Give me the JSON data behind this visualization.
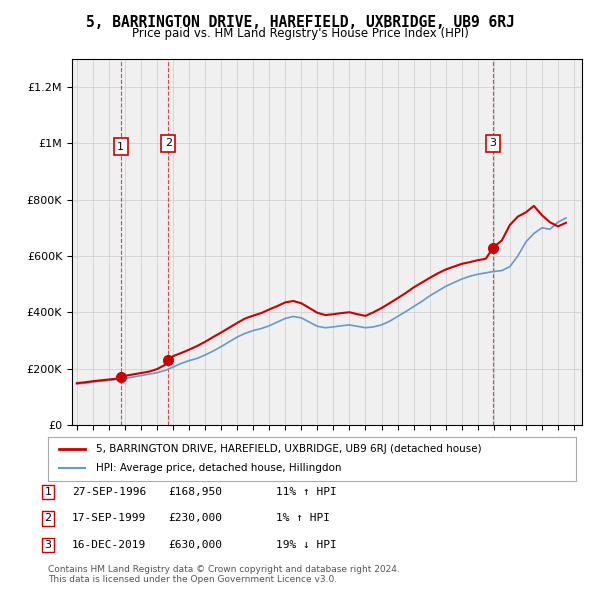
{
  "title": "5, BARRINGTON DRIVE, HAREFIELD, UXBRIDGE, UB9 6RJ",
  "subtitle": "Price paid vs. HM Land Registry's House Price Index (HPI)",
  "title_fontsize": 11,
  "subtitle_fontsize": 9.5,
  "background_color": "#ffffff",
  "plot_bg_color": "#f0f0f0",
  "hatch_color": "#cccccc",
  "ylim": [
    0,
    1300000
  ],
  "xlim_start": 1994.0,
  "xlim_end": 2025.5,
  "yticks": [
    0,
    200000,
    400000,
    600000,
    800000,
    1000000,
    1200000
  ],
  "ytick_labels": [
    "£0",
    "£200K",
    "£400K",
    "£600K",
    "£800K",
    "£1M",
    "£1.2M"
  ],
  "xticks": [
    1994,
    1995,
    1996,
    1997,
    1998,
    1999,
    2000,
    2001,
    2002,
    2003,
    2004,
    2005,
    2006,
    2007,
    2008,
    2009,
    2010,
    2011,
    2012,
    2013,
    2014,
    2015,
    2016,
    2017,
    2018,
    2019,
    2020,
    2021,
    2022,
    2023,
    2024,
    2025
  ],
  "red_line_color": "#cc0000",
  "blue_line_color": "#6699cc",
  "sale_dates": [
    1996.74,
    1999.71,
    2019.96
  ],
  "sale_prices": [
    168950,
    230000,
    630000
  ],
  "sale_labels": [
    "1",
    "2",
    "3"
  ],
  "label_box_color": "#ffffff",
  "label_box_edgecolor": "#cc0000",
  "legend_label_red": "5, BARRINGTON DRIVE, HAREFIELD, UXBRIDGE, UB9 6RJ (detached house)",
  "legend_label_blue": "HPI: Average price, detached house, Hillingdon",
  "table_data": [
    [
      "1",
      "27-SEP-1996",
      "£168,950",
      "11% ↑ HPI"
    ],
    [
      "2",
      "17-SEP-1999",
      "£230,000",
      "1% ↑ HPI"
    ],
    [
      "3",
      "16-DEC-2019",
      "£630,000",
      "19% ↓ HPI"
    ]
  ],
  "footer_text": "Contains HM Land Registry data © Crown copyright and database right 2024.\nThis data is licensed under the Open Government Licence v3.0.",
  "hpi_x": [
    1994,
    1994.5,
    1995,
    1995.5,
    1996,
    1996.5,
    1997,
    1997.5,
    1998,
    1998.5,
    1999,
    1999.5,
    2000,
    2000.5,
    2001,
    2001.5,
    2002,
    2002.5,
    2003,
    2003.5,
    2004,
    2004.5,
    2005,
    2005.5,
    2006,
    2006.5,
    2007,
    2007.5,
    2008,
    2008.5,
    2009,
    2009.5,
    2010,
    2010.5,
    2011,
    2011.5,
    2012,
    2012.5,
    2013,
    2013.5,
    2014,
    2014.5,
    2015,
    2015.5,
    2016,
    2016.5,
    2017,
    2017.5,
    2018,
    2018.5,
    2019,
    2019.5,
    2020,
    2020.5,
    2021,
    2021.5,
    2022,
    2022.5,
    2023,
    2023.5,
    2024,
    2024.5
  ],
  "hpi_y": [
    145000,
    148000,
    152000,
    155000,
    158000,
    161000,
    165000,
    170000,
    175000,
    180000,
    185000,
    193000,
    205000,
    218000,
    228000,
    236000,
    248000,
    262000,
    278000,
    295000,
    312000,
    325000,
    335000,
    342000,
    352000,
    365000,
    378000,
    385000,
    380000,
    365000,
    350000,
    345000,
    348000,
    352000,
    355000,
    350000,
    345000,
    348000,
    355000,
    368000,
    385000,
    402000,
    420000,
    438000,
    458000,
    475000,
    492000,
    505000,
    518000,
    528000,
    535000,
    540000,
    545000,
    548000,
    562000,
    600000,
    650000,
    680000,
    700000,
    695000,
    720000,
    735000
  ],
  "red_x": [
    1994,
    1994.5,
    1995,
    1995.5,
    1996,
    1996.5,
    1996.74,
    1997,
    1997.5,
    1998,
    1998.5,
    1999,
    1999.5,
    1999.71,
    2000,
    2000.5,
    2001,
    2001.5,
    2002,
    2002.5,
    2003,
    2003.5,
    2004,
    2004.5,
    2005,
    2005.5,
    2006,
    2006.5,
    2007,
    2007.5,
    2008,
    2008.5,
    2009,
    2009.5,
    2010,
    2010.5,
    2011,
    2011.5,
    2012,
    2012.5,
    2013,
    2013.5,
    2014,
    2014.5,
    2015,
    2015.5,
    2016,
    2016.5,
    2017,
    2017.5,
    2018,
    2018.5,
    2019,
    2019.5,
    2019.96,
    2020,
    2020.5,
    2021,
    2021.5,
    2022,
    2022.5,
    2023,
    2023.5,
    2024,
    2024.5
  ],
  "red_y": [
    148000,
    151000,
    155000,
    158000,
    161000,
    164000,
    168950,
    174000,
    179000,
    184000,
    189000,
    198000,
    213000,
    230000,
    244000,
    255000,
    267000,
    280000,
    295000,
    312000,
    328000,
    345000,
    362000,
    378000,
    388000,
    397000,
    410000,
    422000,
    435000,
    440000,
    432000,
    415000,
    398000,
    390000,
    393000,
    397000,
    400000,
    393000,
    387000,
    400000,
    415000,
    432000,
    450000,
    468000,
    488000,
    505000,
    522000,
    538000,
    552000,
    562000,
    572000,
    578000,
    585000,
    590000,
    630000,
    632000,
    655000,
    710000,
    740000,
    755000,
    778000,
    745000,
    720000,
    705000,
    718000
  ]
}
